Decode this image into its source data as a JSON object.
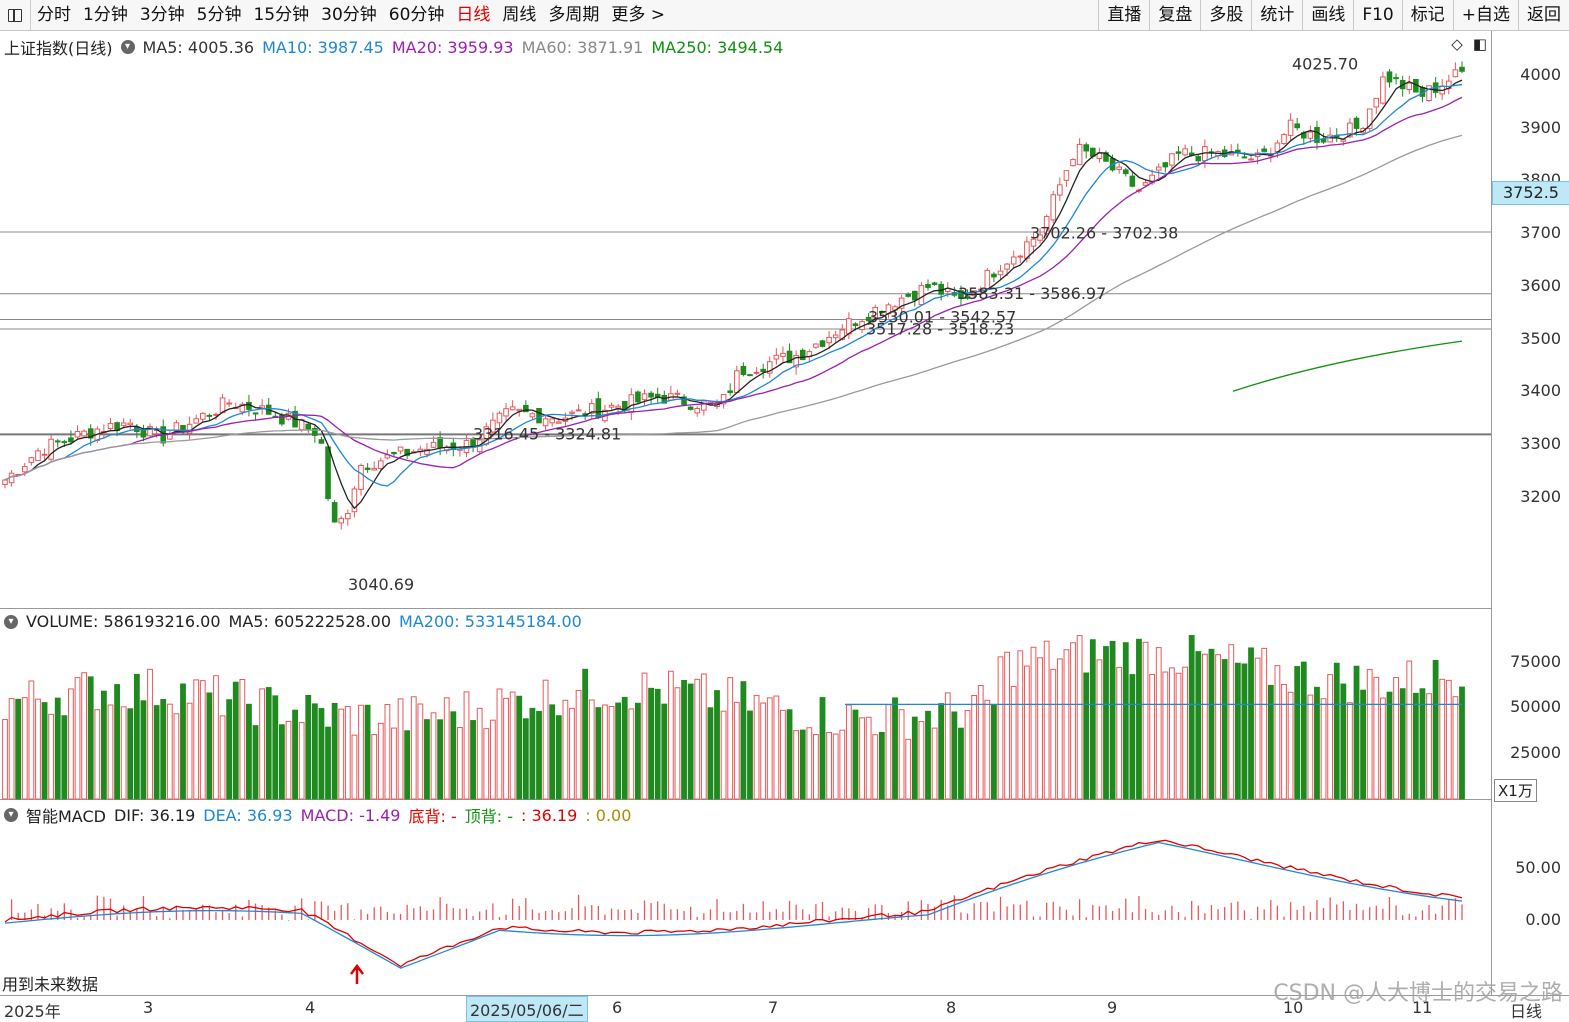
{
  "toolbar": {
    "left": [
      "分时",
      "1分钟",
      "3分钟",
      "5分钟",
      "15分钟",
      "30分钟",
      "60分钟",
      "日线",
      "周线",
      "多周期",
      "更多 >"
    ],
    "active": "日线",
    "right": [
      "直播",
      "复盘",
      "多股",
      "统计",
      "画线",
      "F10",
      "标记",
      "+自选",
      "返回"
    ]
  },
  "main": {
    "title": "上证指数(日线)",
    "ma": [
      {
        "label": "MA5: 4005.36",
        "color": "#333333"
      },
      {
        "label": "MA10: 3987.45",
        "color": "#1e88d6"
      },
      {
        "label": "MA20: 3959.93",
        "color": "#9b1fb0"
      },
      {
        "label": "MA60: 3871.91",
        "color": "#888888"
      },
      {
        "label": "MA250: 3494.54",
        "color": "#109010"
      }
    ],
    "yticks": [
      "4000",
      "3900",
      "3800",
      "3700",
      "3600",
      "3500",
      "3400",
      "3300",
      "3200"
    ],
    "price_tag": "3752.5",
    "annotations": [
      "4025.70",
      "3702.26 - 3702.38",
      "3583.31 - 3586.97",
      "3530.01 - 3542.57",
      "3517.28 - 3518.23",
      "3316.45 - 3324.81",
      "3040.69"
    ]
  },
  "volume": {
    "label": "VOLUME: 586193216.00",
    "ma5": "MA5: 605222528.00",
    "ma200": "MA200: 533145184.00",
    "yticks": [
      "75000",
      "50000",
      "25000"
    ],
    "unit": "X1万"
  },
  "macd": {
    "title": "智能MACD",
    "dif": "DIF: 36.19",
    "dea": "DEA: 36.93",
    "macd": "MACD: -1.49",
    "bottom": "底背: -",
    "top": "顶背: -",
    "extra": ": 36.19",
    "extra2": ": 0.00",
    "yticks": [
      "50.00",
      "0.00"
    ],
    "note": "用到未来数据"
  },
  "dates": {
    "year": "2025年",
    "months": [
      "3",
      "4",
      "6",
      "7",
      "8",
      "9",
      "10",
      "11"
    ],
    "selected": "2025/05/06/二",
    "period": "日线"
  },
  "watermark": "CSDN @人大博士的交易之路"
}
